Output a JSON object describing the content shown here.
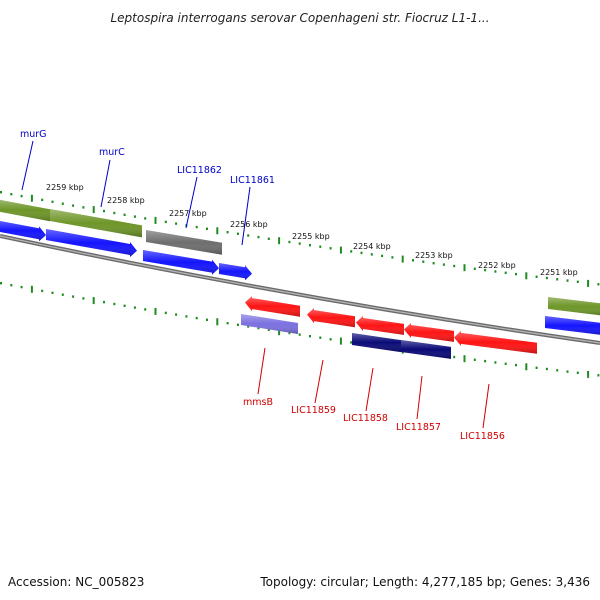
{
  "title": "Leptospira interrogans serovar Copenhageni str. Fiocruz L1-1...",
  "footer": {
    "accession": "Accession: NC_005823",
    "summary": "Topology: circular; Length: 4,277,185 bp; Genes: 3,436"
  },
  "colors": {
    "backbone": "#808080",
    "ticks": "#1e8c1e",
    "cds_forward": "#1414ff",
    "cds_reverse": "#ff1414",
    "gene_olive": "#6e9628",
    "gene_gray": "#6e6e6e",
    "gene_navy": "#0a0a78",
    "gene_lavender": "#7b70e0",
    "label_forward": "#0000c8",
    "label_reverse": "#d20000"
  },
  "kbp_labels": [
    "2259 kbp",
    "2258 kbp",
    "2257 kbp",
    "2256 kbp",
    "2255 kbp",
    "2254 kbp",
    "2253 kbp",
    "2252 kbp",
    "2251 kbp"
  ],
  "forward_labels": [
    "murG",
    "murC",
    "LIC11862",
    "LIC11861"
  ],
  "reverse_labels": [
    "mmsB",
    "LIC11859",
    "LIC11858",
    "LIC11857",
    "LIC11856"
  ]
}
